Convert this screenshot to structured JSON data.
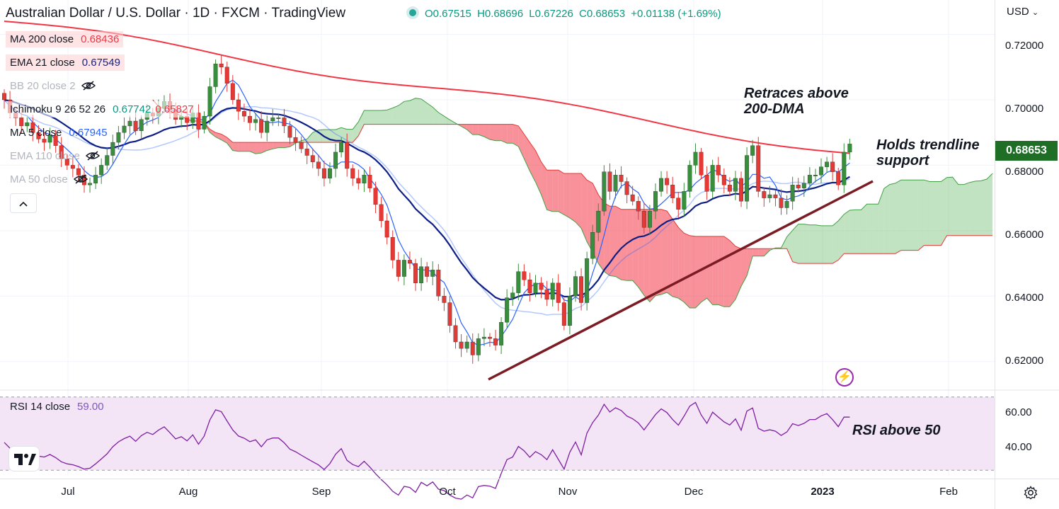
{
  "header": {
    "title": "Australian Dollar / U.S. Dollar · 1D · FXCM · TradingView",
    "ohlc": {
      "open": "O0.67515",
      "high": "H0.68696",
      "low": "L0.67226",
      "close": "C0.68653",
      "change": "+0.01138 (+1.69%)"
    }
  },
  "legend": [
    {
      "label": "MA 200 close",
      "value": "0.68436",
      "color": "#f23645",
      "hidden": false
    },
    {
      "label": "EMA 21 close",
      "value": "0.67549",
      "color": "#1a237e",
      "hidden": false
    },
    {
      "label": "BB 20 close 2",
      "value": "",
      "color": "#9598a1",
      "hidden": true
    },
    {
      "label": "Ichimoku 9 26 52 26",
      "value": "0.67742",
      "value2": "0.65827",
      "color": "#089981",
      "color2": "#f23645",
      "hidden": false
    },
    {
      "label": "MA 5 close",
      "value": "0.67945",
      "color": "#2962ff",
      "hidden": false
    },
    {
      "label": "EMA 110 close",
      "value": "",
      "color": "#9598a1",
      "hidden": true
    },
    {
      "label": "MA 50 close",
      "value": "",
      "color": "#9598a1",
      "hidden": true
    }
  ],
  "currency": "USD",
  "last_price": "0.68653",
  "annotations": {
    "retrace": [
      "Retraces above",
      "200-DMA"
    ],
    "trendline": [
      "Holds trendline",
      "support"
    ],
    "rsi": "RSI above 50"
  },
  "rsi_legend": {
    "label": "RSI 14 close",
    "value": "59.00"
  },
  "colors": {
    "up": "#388e3c",
    "down": "#e53935",
    "ma200": "#f23645",
    "ema21": "#0d1e86",
    "ma5": "#2962ff",
    "rsi": "#7e1fa2",
    "rsi_bg": "#f3e5f5",
    "trendline": "#7b1c24"
  },
  "chart_data": {
    "type": "candlestick",
    "y_ticks": [
      "0.72000",
      "0.70000",
      "0.68000",
      "0.66000",
      "0.64000",
      "0.62000"
    ],
    "ylim": [
      0.6115,
      0.7305
    ],
    "x_ticks": [
      "Jul",
      "Aug",
      "Sep",
      "Oct",
      "Nov",
      "Dec",
      "2023",
      "Feb"
    ],
    "rsi_ticks": [
      "60.00",
      "40.00"
    ],
    "rsi_ylim": [
      27,
      73
    ],
    "rsi_bands": [
      70,
      30
    ],
    "candles_close": [
      0.7,
      0.696,
      0.6945,
      0.692,
      0.693,
      0.69,
      0.688,
      0.687,
      0.689,
      0.686,
      0.682,
      0.68,
      0.679,
      0.677,
      0.674,
      0.6745,
      0.677,
      0.68,
      0.683,
      0.687,
      0.69,
      0.692,
      0.6935,
      0.6905,
      0.694,
      0.696,
      0.695,
      0.6975,
      0.6995,
      0.697,
      0.694,
      0.695,
      0.693,
      0.696,
      0.691,
      0.695,
      0.704,
      0.711,
      0.71,
      0.705,
      0.7,
      0.6965,
      0.695,
      0.693,
      0.694,
      0.69,
      0.6935,
      0.6945,
      0.6945,
      0.692,
      0.6885,
      0.687,
      0.685,
      0.683,
      0.681,
      0.679,
      0.676,
      0.679,
      0.684,
      0.687,
      0.679,
      0.676,
      0.6745,
      0.677,
      0.673,
      0.668,
      0.663,
      0.658,
      0.651,
      0.646,
      0.651,
      0.65,
      0.644,
      0.649,
      0.646,
      0.648,
      0.64,
      0.638,
      0.631,
      0.626,
      0.624,
      0.626,
      0.622,
      0.627,
      0.6275,
      0.627,
      0.625,
      0.632,
      0.6395,
      0.641,
      0.6475,
      0.645,
      0.641,
      0.644,
      0.642,
      0.639,
      0.644,
      0.638,
      0.631,
      0.64,
      0.646,
      0.638,
      0.6515,
      0.6595,
      0.666,
      0.678,
      0.672,
      0.677,
      0.675,
      0.671,
      0.669,
      0.666,
      0.661,
      0.666,
      0.672,
      0.676,
      0.674,
      0.67,
      0.6665,
      0.672,
      0.68,
      0.684,
      0.677,
      0.672,
      0.68,
      0.677,
      0.674,
      0.672,
      0.676,
      0.669,
      0.683,
      0.686,
      0.672,
      0.67,
      0.671,
      0.67,
      0.667,
      0.669,
      0.674,
      0.673,
      0.6745,
      0.677,
      0.677,
      0.6795,
      0.681,
      0.678,
      0.674,
      0.684,
      0.6865
    ],
    "rsi_values": [
      45.2,
      42.0,
      41.3,
      39.5,
      40.1,
      38.4,
      37.7,
      37.2,
      38.6,
      36.9,
      34.6,
      33.5,
      33.0,
      32.0,
      30.6,
      31.1,
      33.5,
      36.2,
      39.0,
      42.8,
      45.5,
      47.3,
      48.6,
      45.8,
      48.9,
      50.7,
      49.5,
      51.9,
      53.7,
      50.5,
      47.1,
      48.3,
      46.0,
      49.3,
      44.2,
      48.6,
      57.5,
      63.0,
      62.0,
      56.9,
      52.0,
      48.7,
      47.5,
      45.6,
      46.6,
      42.8,
      46.6,
      47.6,
      47.6,
      45.0,
      41.5,
      40.1,
      38.2,
      36.4,
      34.6,
      32.9,
      30.4,
      33.6,
      38.7,
      41.8,
      35.4,
      33.1,
      32.0,
      34.9,
      31.7,
      28.1,
      24.9,
      22.0,
      18.5,
      16.4,
      21.2,
      20.6,
      17.9,
      23.4,
      21.5,
      23.6,
      19.7,
      18.9,
      16.4,
      14.8,
      14.2,
      16.5,
      14.9,
      21.1,
      21.7,
      21.3,
      20.1,
      28.3,
      35.8,
      37.2,
      43.0,
      40.6,
      37.1,
      40.2,
      38.5,
      35.8,
      41.2,
      35.9,
      30.6,
      39.8,
      45.4,
      38.4,
      50.2,
      56.0,
      60.1,
      66.0,
      61.8,
      64.1,
      62.6,
      59.6,
      58.1,
      55.8,
      52.0,
      56.2,
      60.4,
      63.5,
      61.5,
      57.7,
      54.6,
      59.5,
      65.0,
      67.0,
      60.2,
      55.6,
      61.7,
      59.0,
      56.4,
      54.7,
      58.0,
      51.8,
      62.3,
      64.0,
      52.9,
      51.3,
      52.1,
      51.3,
      49.0,
      50.9,
      55.4,
      54.4,
      55.6,
      57.7,
      57.7,
      59.7,
      60.9,
      57.6,
      53.8,
      59.0,
      59.0
    ]
  }
}
